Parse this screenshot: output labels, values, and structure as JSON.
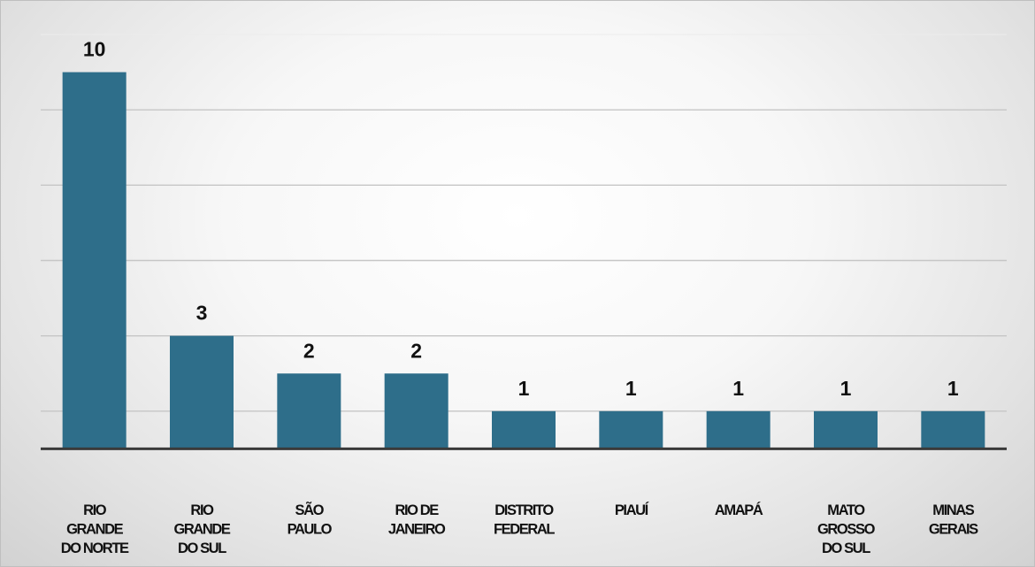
{
  "chart_data": {
    "type": "bar",
    "title": "",
    "xlabel": "",
    "ylabel": "",
    "categories": [
      "RIO GRANDE DO NORTE",
      "RIO GRANDE DO SUL",
      "SÃO PAULO",
      "RIO DE JANEIRO",
      "DISTRITO FEDERAL",
      "PIAUÍ",
      "AMAPÁ",
      "MATO GROSSO DO SUL",
      "MINAS GERAIS"
    ],
    "category_lines": [
      [
        "RIO",
        "GRANDE",
        "DO NORTE"
      ],
      [
        "RIO",
        "GRANDE",
        "DO SUL"
      ],
      [
        "SÃO",
        "PAULO"
      ],
      [
        "RIO DE",
        "JANEIRO"
      ],
      [
        "DISTRITO",
        "FEDERAL"
      ],
      [
        "PIAUÍ"
      ],
      [
        "AMAPÁ"
      ],
      [
        "MATO",
        "GROSSO",
        "DO SUL"
      ],
      [
        "MINAS",
        "GERAIS"
      ]
    ],
    "values": [
      10,
      3,
      2,
      2,
      1,
      1,
      1,
      1,
      1
    ],
    "data_labels": [
      "10",
      "3",
      "2",
      "2",
      "1",
      "1",
      "1",
      "1",
      "1"
    ],
    "ylim": [
      -1,
      11
    ],
    "grid": true,
    "y_axis_labels_shown": false,
    "legend": "none",
    "colors": {
      "bar": "#2e6e8a",
      "axis": "#3a3a3a",
      "grid": "#c6c6c6",
      "text": "#111111"
    }
  }
}
